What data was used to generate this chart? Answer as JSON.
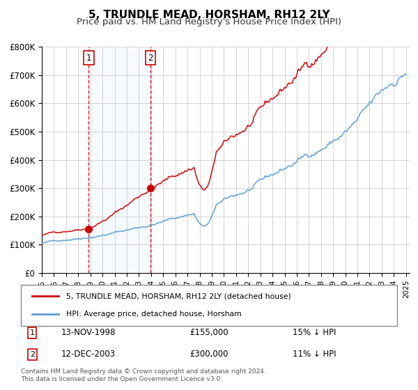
{
  "title": "5, TRUNDLE MEAD, HORSHAM, RH12 2LY",
  "subtitle": "Price paid vs. HM Land Registry's House Price Index (HPI)",
  "xlabel": "",
  "ylabel": "",
  "ylim": [
    0,
    800000
  ],
  "xlim_start": 1995.0,
  "xlim_end": 2025.3,
  "yticks": [
    0,
    100000,
    200000,
    300000,
    400000,
    500000,
    600000,
    700000,
    800000
  ],
  "ytick_labels": [
    "£0",
    "£100K",
    "£200K",
    "£300K",
    "£400K",
    "£500K",
    "£600K",
    "£700K",
    "£800K"
  ],
  "xticks": [
    1995,
    1996,
    1997,
    1998,
    1999,
    2000,
    2001,
    2002,
    2003,
    2004,
    2005,
    2006,
    2007,
    2008,
    2009,
    2010,
    2011,
    2012,
    2013,
    2014,
    2015,
    2016,
    2017,
    2018,
    2019,
    2020,
    2021,
    2022,
    2023,
    2024,
    2025
  ],
  "sale1_x": 1998.87,
  "sale1_y": 155000,
  "sale1_label": "1",
  "sale2_x": 2003.95,
  "sale2_y": 300000,
  "sale2_label": "2",
  "shaded_region_x1": 1998.87,
  "shaded_region_x2": 2003.95,
  "red_line_color": "#cc0000",
  "blue_line_color": "#5b9bd5",
  "shaded_color": "#ddeeff",
  "vline_color": "#cc0000",
  "background_color": "#ffffff",
  "grid_color": "#cccccc",
  "legend_label1": "5, TRUNDLE MEAD, HORSHAM, RH12 2LY (detached house)",
  "legend_label2": "HPI: Average price, detached house, Horsham",
  "table_row1_num": "1",
  "table_row1_date": "13-NOV-1998",
  "table_row1_price": "£155,000",
  "table_row1_hpi": "15% ↓ HPI",
  "table_row2_num": "2",
  "table_row2_date": "12-DEC-2003",
  "table_row2_price": "£300,000",
  "table_row2_hpi": "11% ↓ HPI",
  "footer": "Contains HM Land Registry data © Crown copyright and database right 2024.\nThis data is licensed under the Open Government Licence v3.0.",
  "title_fontsize": 11,
  "subtitle_fontsize": 9.5
}
